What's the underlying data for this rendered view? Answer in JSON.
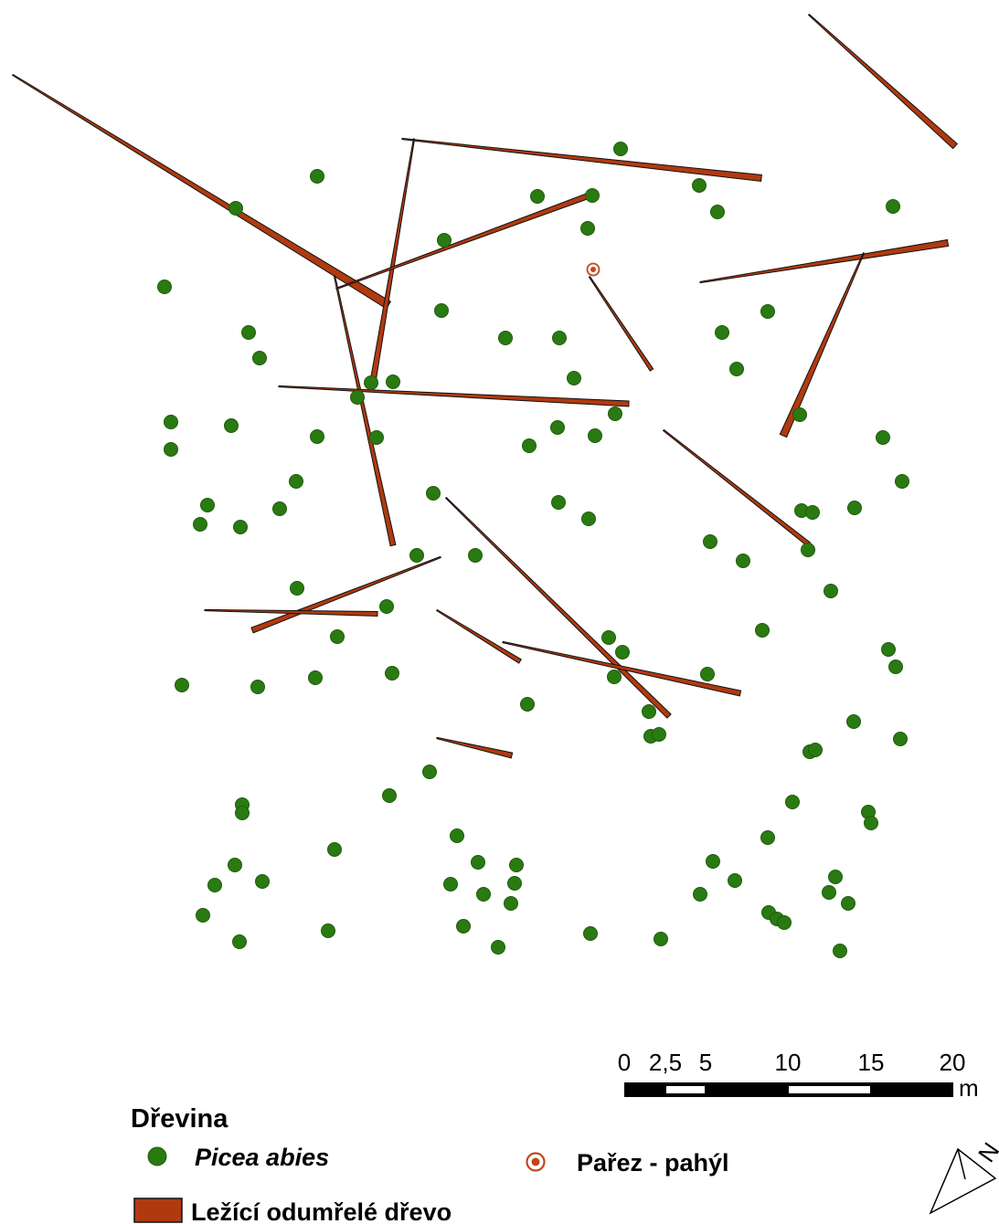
{
  "colors": {
    "tree": "#2a7a12",
    "tree_edge": "#1e5c0c",
    "log_fill": "#b03a10",
    "log_edge": "#111111",
    "stump": "#c0471a",
    "background": "#ffffff"
  },
  "scale_bar": {
    "ticks": [
      "0",
      "2,5",
      "5",
      "10",
      "15",
      "20"
    ],
    "unit": "m"
  },
  "legend": {
    "title": "Dřevina",
    "tree_label": "Picea abies",
    "stump_label": "Pařez - pahýl",
    "log_label": "Ležící odumřelé dřevo"
  },
  "north_arrow": {
    "icon": "north-arrow-icon",
    "label": "N"
  }
}
